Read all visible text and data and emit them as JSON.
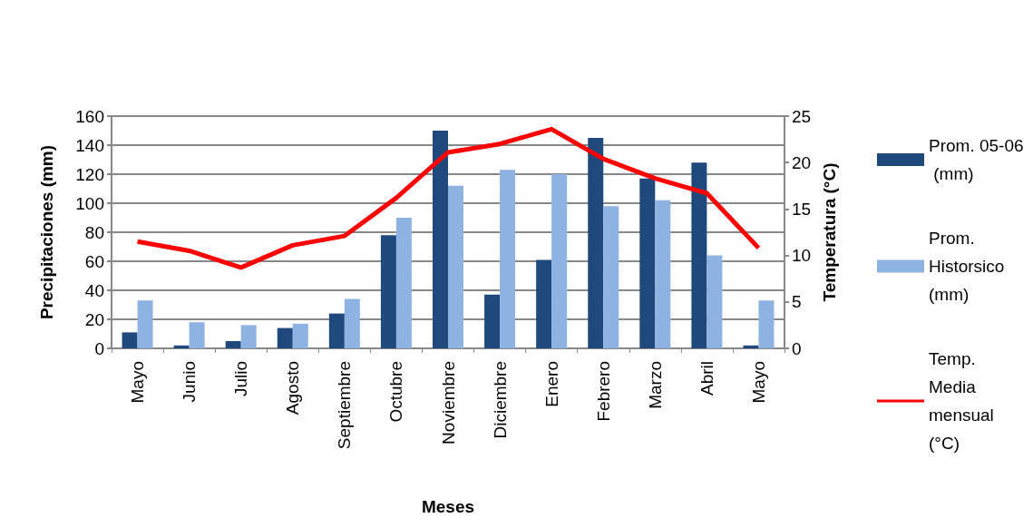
{
  "chart_data": {
    "type": "bar",
    "xlabel": "Meses",
    "ylabel": "Precipitaciones (mm)",
    "y2label": "Temperatura (°C)",
    "categories": [
      "Mayo",
      "Junio",
      "Julio",
      "Agosto",
      "Septiembre",
      "Octubre",
      "Noviembre",
      "Diciembre",
      "Enero",
      "Febrero",
      "Marzo",
      "Abril",
      "Mayo"
    ],
    "series": [
      {
        "name": "Prom. 05-06 (mm)",
        "color": "#1f497d",
        "values": [
          11,
          2,
          5,
          14,
          24,
          78,
          150,
          37,
          61,
          145,
          117,
          128,
          2
        ]
      },
      {
        "name": "Prom. Historsico (mm)",
        "color": "#8db3e2",
        "values": [
          33,
          18,
          16,
          17,
          34,
          90,
          112,
          123,
          120,
          98,
          102,
          64,
          33
        ]
      },
      {
        "name": "Temp. Media mensual (°C)",
        "type": "line",
        "axis": "y2",
        "color": "#ff0000",
        "marker": "none",
        "values": [
          11.5,
          10.5,
          8.7,
          11.1,
          12.1,
          16.2,
          21.1,
          22.0,
          23.6,
          20.4,
          18.3,
          16.7,
          10.8
        ]
      }
    ],
    "ylim": [
      0,
      160
    ],
    "yticks": [
      0,
      20,
      40,
      60,
      80,
      100,
      120,
      140,
      160
    ],
    "y2lim": [
      0,
      25
    ],
    "y2ticks": [
      0,
      5,
      10,
      15,
      20,
      25
    ],
    "grid": "y",
    "legend": "right"
  }
}
